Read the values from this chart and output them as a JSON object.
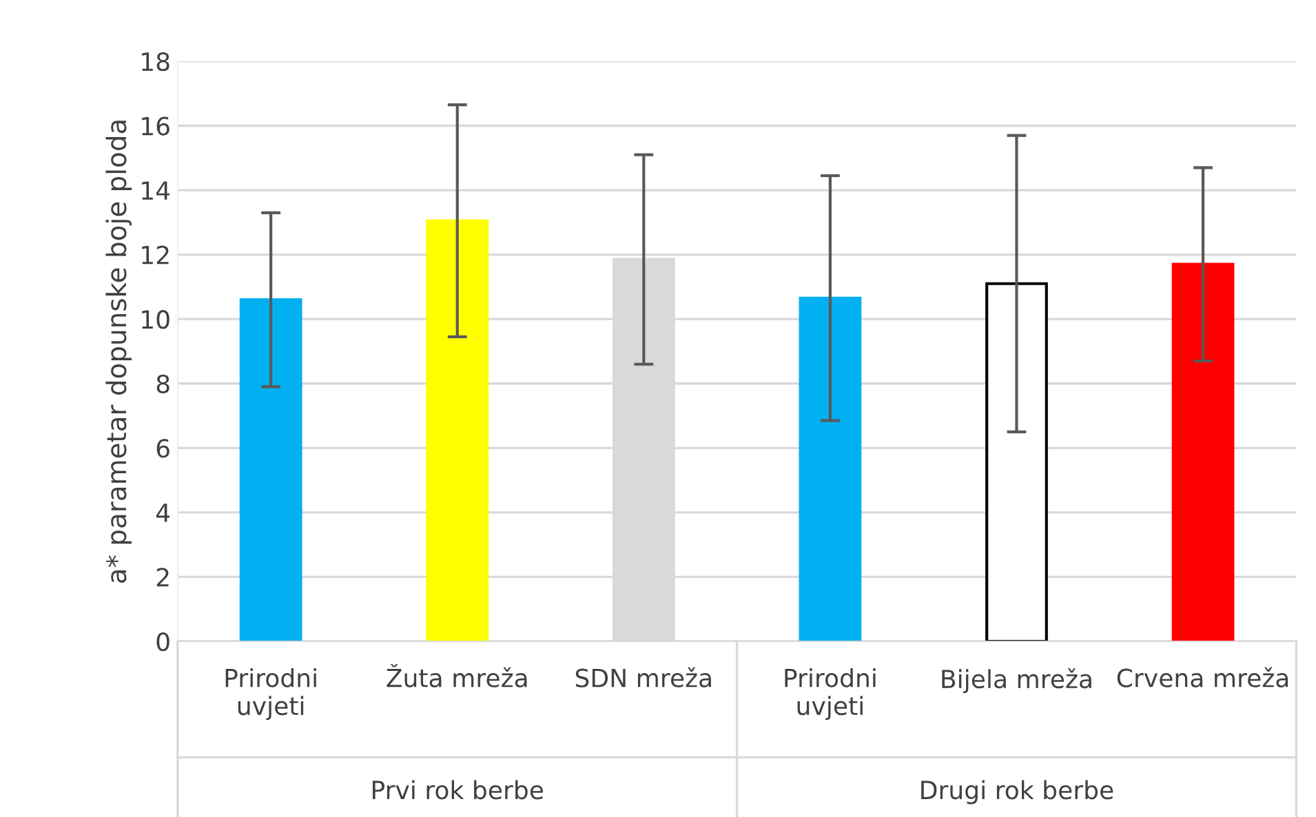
{
  "chart_data": {
    "type": "bar",
    "ylabel": "a* parametar dopunske boje ploda",
    "categories": [
      "Prirodni uvjeti",
      "Žuta mreža",
      "SDN mreža",
      "Prirodni uvjeti",
      "Bijela mreža",
      "Crvena mreža"
    ],
    "values": [
      10.6,
      13.05,
      11.85,
      10.65,
      11.1,
      11.7
    ],
    "errors": [
      2.7,
      3.6,
      3.25,
      3.8,
      4.6,
      3.0
    ],
    "colors": [
      "#00b0f0",
      "#ffff00",
      "#d9d9d9",
      "#00b0f0",
      "#ffffff",
      "#ff0000"
    ],
    "annotations": [
      "Prvi rok berbe",
      "Drugi rok berbe"
    ],
    "ylim": [
      0,
      18
    ],
    "yticks": [
      0,
      2,
      4,
      6,
      8,
      10,
      12,
      14,
      16,
      18
    ],
    "grid": "y"
  }
}
